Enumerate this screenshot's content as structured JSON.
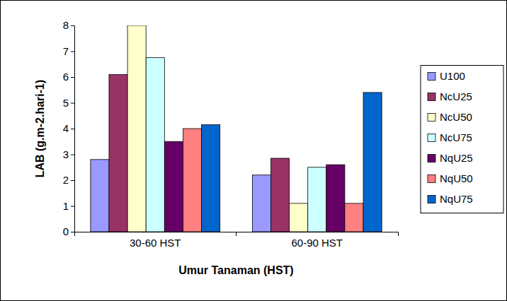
{
  "chart_data": {
    "type": "bar",
    "x_label": "Umur Tanaman (HST)",
    "y_label": "LAB (g.m-2.hari-1)",
    "categories": [
      "30-60 HST",
      "60-90 HST"
    ],
    "series": [
      {
        "name": "U100",
        "color": "#9999ff",
        "values": [
          2.8,
          2.2
        ]
      },
      {
        "name": "NcU25",
        "color": "#993366",
        "values": [
          6.1,
          2.85
        ]
      },
      {
        "name": "NcU50",
        "color": "#ffffcc",
        "values": [
          8.0,
          1.1
        ]
      },
      {
        "name": "NcU75",
        "color": "#ccffff",
        "values": [
          6.75,
          2.5
        ]
      },
      {
        "name": "NqU25",
        "color": "#660066",
        "values": [
          3.5,
          2.6
        ]
      },
      {
        "name": "NqU50",
        "color": "#ff8080",
        "values": [
          4.0,
          1.1
        ]
      },
      {
        "name": "NqU75",
        "color": "#0066cc",
        "values": [
          4.15,
          5.4
        ]
      }
    ],
    "ylim": [
      0,
      8
    ],
    "yticks": [
      0,
      1,
      2,
      3,
      4,
      5,
      6,
      7,
      8
    ],
    "grid": false,
    "legend": "right"
  }
}
